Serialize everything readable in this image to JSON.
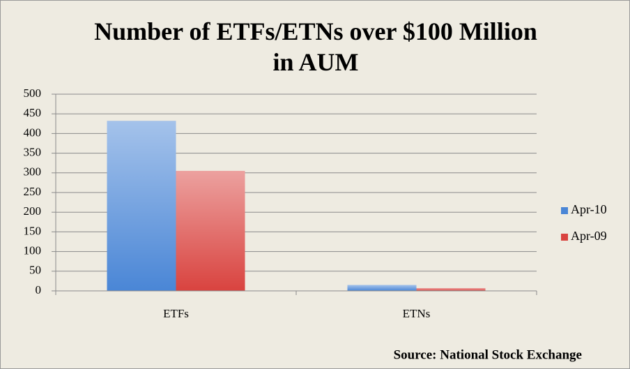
{
  "chart_data": {
    "type": "bar",
    "title": "Number of ETFs/ETNs over $100 Million\nin AUM",
    "source": "Source: National Stock Exchange",
    "categories": [
      "ETFs",
      "ETNs"
    ],
    "series": [
      {
        "name": "Apr-10",
        "color": "#4a86d6",
        "values": [
          432,
          15
        ]
      },
      {
        "name": "Apr-09",
        "color": "#d9433f",
        "values": [
          305,
          7
        ]
      }
    ],
    "ylim": [
      0,
      500
    ],
    "yticks": [
      0,
      50,
      100,
      150,
      200,
      250,
      300,
      350,
      400,
      450,
      500
    ],
    "grid": true,
    "legend": "right"
  }
}
